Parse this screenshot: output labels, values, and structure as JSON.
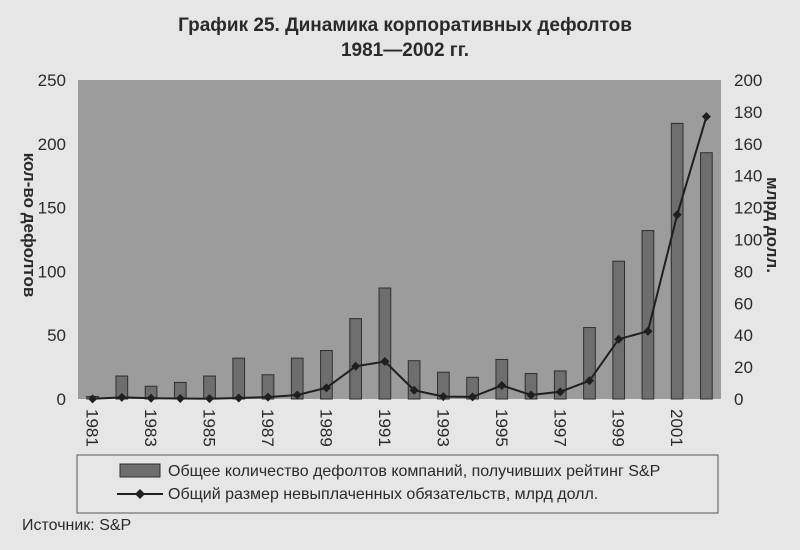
{
  "chart_data": {
    "type": "bar",
    "title_line1": "График 25. Динамика корпоративных дефолтов",
    "title_line2": "1981—2002 гг.",
    "ylabel_left": "кол-во дефолтов",
    "ylabel_right": "млрд долл.",
    "ylim_left": [
      0,
      250
    ],
    "ylim_right": [
      0,
      200
    ],
    "yticks_left": [
      "0",
      "50",
      "100",
      "150",
      "200",
      "250"
    ],
    "yticks_right": [
      "0",
      "20",
      "40",
      "60",
      "80",
      "100",
      "120",
      "140",
      "160",
      "180",
      "200"
    ],
    "x_tick_labels": [
      "1981",
      "1983",
      "1985",
      "1987",
      "1989",
      "1991",
      "1993",
      "1995",
      "1997",
      "1999",
      "2001"
    ],
    "categories": [
      "1981",
      "1982",
      "1983",
      "1984",
      "1985",
      "1986",
      "1987",
      "1988",
      "1989",
      "1990",
      "1991",
      "1992",
      "1993",
      "1994",
      "1995",
      "1996",
      "1997",
      "1998",
      "1999",
      "2000",
      "2001",
      "2002"
    ],
    "series": [
      {
        "name": "Общее количество дефолтов компаний, получивших рейтинг S&P",
        "kind": "bar",
        "axis": "left",
        "values": [
          2,
          18,
          10,
          13,
          18,
          32,
          19,
          32,
          38,
          63,
          87,
          30,
          21,
          17,
          31,
          20,
          22,
          56,
          108,
          132,
          216,
          193
        ]
      },
      {
        "name": "Общий размер невыплаченных обязательств, млрд долл.",
        "kind": "line",
        "axis": "right",
        "values": [
          0.1,
          1.0,
          0.5,
          0.3,
          0.2,
          0.6,
          1.2,
          2.5,
          7.0,
          20.5,
          23.5,
          5.5,
          1.5,
          1.3,
          8.5,
          2.5,
          4.5,
          11.5,
          37.5,
          42.5,
          115.5,
          177.0
        ]
      }
    ],
    "grid": false,
    "legend_position": "bottom"
  },
  "source_text": "Источник: S&P",
  "colors": {
    "plot_bg": "#9c9c9c",
    "bar_fill": "#6e6e6e",
    "bar_stroke": "#2f2f2f",
    "line": "#1f1f1f",
    "page_bg": "#e6e6e6"
  }
}
